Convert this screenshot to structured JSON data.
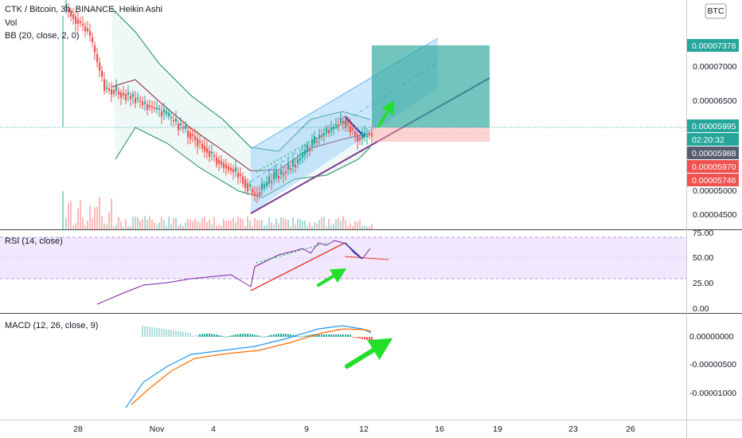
{
  "header": {
    "symbol": "CTK / Bitcoin, 3h, BINANCE, Heikin Ashi",
    "indicators": [
      "Vol",
      "BB (20, close, 2, 0)"
    ]
  },
  "currency": "BTC",
  "price_axis": {
    "labels": [
      "0.00007000",
      "0.00006500",
      "0.00005000",
      "0.00004500"
    ]
  },
  "price_badges": [
    {
      "label": "0.00007378"
    },
    {
      "label": "0.00005995"
    },
    {
      "label": "02:20:32"
    },
    {
      "label": "0.00005988"
    },
    {
      "label": "0.00005970"
    },
    {
      "label": "0.00005746"
    }
  ],
  "rsi": {
    "title": "RSI (14, close)",
    "labels": [
      "75.00",
      "50.00",
      "25.00",
      "0.00"
    ]
  },
  "macd": {
    "title": "MACD (12, 26, close, 9)",
    "labels": [
      "0.00000000",
      "-0.00000500",
      "-0.00001000"
    ]
  },
  "time_axis": [
    "28",
    "Nov",
    "4",
    "9",
    "12",
    "16",
    "19",
    "23",
    "26"
  ]
}
